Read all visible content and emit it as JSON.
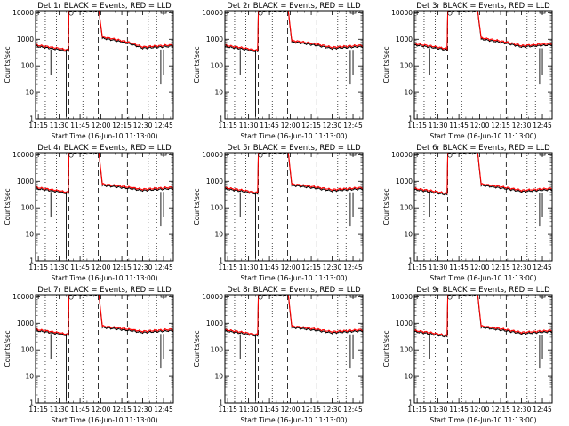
{
  "figure": {
    "xlabel": "Start Time (16-Jun-10 11:13:00)",
    "ylabel": "Counts/sec"
  },
  "chart_data": [
    {
      "type": "line",
      "title": "Det 1r BLACK = Events, RED = LLD",
      "baseline": 340,
      "hump": 1100,
      "drop_at": 3
    },
    {
      "type": "line",
      "title": "Det 2r BLACK = Events, RED = LLD",
      "baseline": 330,
      "hump": 800,
      "drop_at": 3
    },
    {
      "type": "line",
      "title": "Det 3r BLACK = Events, RED = LLD",
      "baseline": 380,
      "hump": 1000,
      "drop_at": 2
    },
    {
      "type": "line",
      "title": "Det 4r BLACK = Events, RED = LLD",
      "baseline": 330,
      "hump": 700,
      "drop_at": 2
    },
    {
      "type": "line",
      "title": "Det 5r BLACK = Events, RED = LLD",
      "baseline": 320,
      "hump": 700,
      "drop_at": 2
    },
    {
      "type": "line",
      "title": "Det 6r BLACK = Events, RED = LLD",
      "baseline": 300,
      "hump": 700,
      "drop_at": 2
    },
    {
      "type": "line",
      "title": "Det 7r BLACK = Events, RED = LLD",
      "baseline": 330,
      "hump": 700,
      "drop_at": 3
    },
    {
      "type": "line",
      "title": "Det 8r BLACK = Events, RED = LLD",
      "baseline": 320,
      "hump": 700,
      "drop_at": 2
    },
    {
      "type": "line",
      "title": "Det 9r BLACK = Events, RED = LLD",
      "baseline": 300,
      "hump": 700,
      "drop_at": 2
    }
  ],
  "shared": {
    "x_ticks": [
      "11:15",
      "11:30",
      "11:45",
      "12:00",
      "12:15",
      "12:30",
      "12:45"
    ],
    "x_tick_minutes": [
      15,
      30,
      45,
      60,
      75,
      90,
      105
    ],
    "xlim_minutes": [
      13,
      112
    ],
    "y_ticks": [
      "1",
      "10",
      "100",
      "1000",
      "10000"
    ],
    "y_tick_values": [
      1,
      10,
      100,
      1000,
      10000
    ],
    "ylim": [
      1,
      12000
    ],
    "y_scale": "log",
    "dotted_lines_minutes": [
      20,
      28,
      47,
      94,
      100
    ],
    "dashed_lines_minutes": [
      37,
      58,
      79
    ],
    "series_names": [
      "Events",
      "LLD"
    ],
    "colors": {
      "events": "#000000",
      "lld": "#ff0000",
      "axes": "#000000"
    },
    "saturation_start": 37.5,
    "saturation_end": 58.5,
    "saturation_level": 12000,
    "drop_minutes": [
      24,
      35,
      103,
      105
    ]
  }
}
